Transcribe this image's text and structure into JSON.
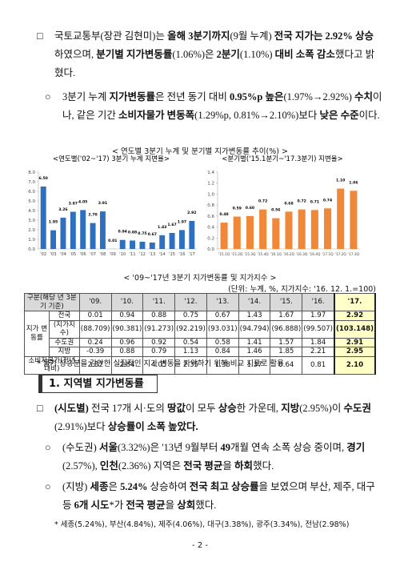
{
  "intro": [
    {
      "marker": "□",
      "runs": [
        "국토교통부(장관 김현미)는 ",
        {
          "bold": "올해 3분기까지"
        },
        "(9월 누계) ",
        {
          "bold": "전국 지가는 2.92% 상승"
        },
        "하였으며, ",
        {
          "bold": "분기별 지가변동률"
        },
        "(1.06%)은 ",
        {
          "bold": "2분기"
        },
        "(1.10%) ",
        {
          "bold": "대비 소폭 감소"
        },
        "했다고 밝혔다."
      ]
    },
    {
      "marker": "○",
      "runs": [
        "3분기 누계 ",
        {
          "bold": "지가변동률"
        },
        "은 전년 동기 대비 ",
        {
          "bold": "0.95%p 높은"
        },
        "(1.97%→2.92%) ",
        {
          "bold": "수치"
        },
        "이나, 같은 기간 ",
        {
          "bold": "소비자물가 변동폭"
        },
        "(1.29%p, 0.81%→2.10%)보다 ",
        {
          "bold": "낮은 수준"
        },
        "이다."
      ]
    }
  ],
  "figure_title": "< 연도별 3분기 누계 및 분기별 지가변동률 추이(%) >",
  "chart_data": [
    {
      "type": "bar",
      "title": "<연도별('02~'17) 3분기 누계 지변율>",
      "color": "#2e6fbf",
      "categories": [
        "'02",
        "'03",
        "'04",
        "'05",
        "'06",
        "'07",
        "'08",
        "'09",
        "'10",
        "'11",
        "'12",
        "'13",
        "'14",
        "'15",
        "'16",
        "'17"
      ],
      "values": [
        6.5,
        1.95,
        3.26,
        3.87,
        4.05,
        2.7,
        3.91,
        0.01,
        0.94,
        0.88,
        0.75,
        0.67,
        1.43,
        1.67,
        1.97,
        2.92
      ],
      "value_labels": [
        "6.50",
        "1.95",
        "3.26",
        "3.87",
        "4.05",
        "2.70",
        "3.91",
        "0.01",
        "0.94",
        "0.88",
        "0.75",
        "0.67",
        "1.43",
        "1.67",
        "1.97",
        "2.92"
      ],
      "ylim": [
        0,
        8
      ],
      "yticks": [
        {
          "value": 0,
          "label": "0.0"
        },
        {
          "value": 1,
          "label": "1.0"
        },
        {
          "value": 2,
          "label": "2.0"
        },
        {
          "value": 3,
          "label": "3.0"
        },
        {
          "value": 4,
          "label": "4.0"
        },
        {
          "value": 5,
          "label": "5.0"
        },
        {
          "value": 6,
          "label": "6.0"
        },
        {
          "value": 7,
          "label": "7.0"
        },
        {
          "value": 8,
          "label": "8.0"
        }
      ]
    },
    {
      "type": "bar",
      "title": "<분기별('15.1분기~'17.3분기) 지변율>",
      "color": "#f0883a",
      "categories": [
        "'15.1Q",
        "'15.2Q",
        "'15.3Q",
        "'15.4Q",
        "'16.1Q",
        "'16.2Q",
        "'16.3Q",
        "'16.4Q",
        "'17.1Q",
        "'17.2Q",
        "'17.3Q"
      ],
      "values": [
        0.48,
        0.59,
        0.6,
        0.72,
        0.56,
        0.68,
        0.72,
        0.71,
        0.74,
        1.1,
        1.06
      ],
      "value_labels": [
        "0.48",
        "0.59",
        "0.60",
        "0.72",
        "0.56",
        "0.68",
        "0.72",
        "0.71",
        "0.74",
        "1.10",
        "1.06"
      ],
      "ylim": [
        0,
        1.4
      ],
      "yticks": [
        {
          "value": 0,
          "label": "0.0"
        },
        {
          "value": 0.2,
          "label": "0.2"
        },
        {
          "value": 0.4,
          "label": "0.4"
        },
        {
          "value": 0.6,
          "label": "0.6"
        },
        {
          "value": 0.8,
          "label": "0.8"
        },
        {
          "value": 1,
          "label": "1.0"
        },
        {
          "value": 1.2,
          "label": "1.2"
        },
        {
          "value": 1.4,
          "label": "1.4"
        }
      ]
    }
  ],
  "table": {
    "title": "< '09~'17년 3분기 지가변동률 및 지가지수 >",
    "unit": "(단위: 누계, %, 지가지수: '16. 12. 1.=100)",
    "header": [
      "구분(해당 년 3분기 기준)",
      "'09.",
      "'10.",
      "'11.",
      "'12.",
      "'13.",
      "'14.",
      "'15.",
      "'16.",
      "'17."
    ],
    "group": "지가 변동률",
    "rows": [
      {
        "label": "전국",
        "values": [
          "0.01",
          "0.94",
          "0.88",
          "0.75",
          "0.67",
          "1.43",
          "1.67",
          "1.97",
          "2.92"
        ]
      },
      {
        "label": "(지가지수)",
        "values": [
          "(88.709)",
          "(90.381)",
          "(91.273)",
          "(92.219)",
          "(93.031)",
          "(94.794)",
          "(96.888)",
          "(99.507)",
          "(103.148)"
        ]
      },
      {
        "label": "수도권",
        "values": [
          "0.24",
          "0.96",
          "0.92",
          "0.54",
          "0.58",
          "1.41",
          "1.57",
          "1.84",
          "2.91"
        ]
      },
      {
        "label": "지방",
        "values": [
          "-0.39",
          "0.88",
          "0.79",
          "1.13",
          "0.84",
          "1.46",
          "1.85",
          "2.21",
          "2.95"
        ]
      },
      {
        "label": "소비자물가(전년 대비)",
        "values": [
          "2.87",
          "2.84",
          "4.05",
          "2.35",
          "1.38",
          "1.37",
          "0.64",
          "0.81",
          "2.10"
        ]
      }
    ]
  },
  "table_note": "* 물가 상승분을 감안한 실질적인 지가 변동을 파악하기 위해 비교 지표로 활용",
  "section": {
    "heading": "1. 지역별 지가변동률",
    "paragraphs": [
      {
        "marker": "□",
        "runs": [
          {
            "bold": "(시도별)"
          },
          " 전국 17개 시·도의 ",
          {
            "bold": "땅값"
          },
          "이 모두 ",
          {
            "bold": "상승"
          },
          "한 가운데, ",
          {
            "bold": "지방"
          },
          "(2.95%)이 ",
          {
            "bold": "수도권"
          },
          "(2.91%)보다 ",
          {
            "bold": "상승률이 소폭 높았다."
          }
        ]
      },
      {
        "marker": "○",
        "runs": [
          "(수도권) ",
          {
            "bold": "서울"
          },
          "(3.32%)은 '13년 9월부터 ",
          {
            "bold": "49"
          },
          "개월 연속 소폭 상승 중이며, ",
          {
            "bold": "경기"
          },
          "(2.57%), ",
          {
            "bold": "인천"
          },
          "(2.36%) 지역은 ",
          {
            "bold": "전국 평균"
          },
          "을 ",
          {
            "bold": "하회"
          },
          "했다."
        ]
      },
      {
        "marker": "○",
        "runs": [
          "(지방) ",
          {
            "bold": "세종"
          },
          "은 ",
          {
            "bold": "5.24%"
          },
          " 상승하여 ",
          {
            "bold": "전국 최고 상승률"
          },
          "을 보였으며 부산, 제주, 대구 등 ",
          {
            "bold": "6개 시도"
          },
          "*가 ",
          {
            "bold": "전국 평균"
          },
          "을 ",
          {
            "bold": "상회"
          },
          "했다."
        ]
      }
    ],
    "footnote": "* 세종(5.24%), 부산(4.84%), 제주(4.06%), 대구(3.38%), 광주(3.34%), 전남(2.98%)"
  },
  "page_number": "- 2 -"
}
